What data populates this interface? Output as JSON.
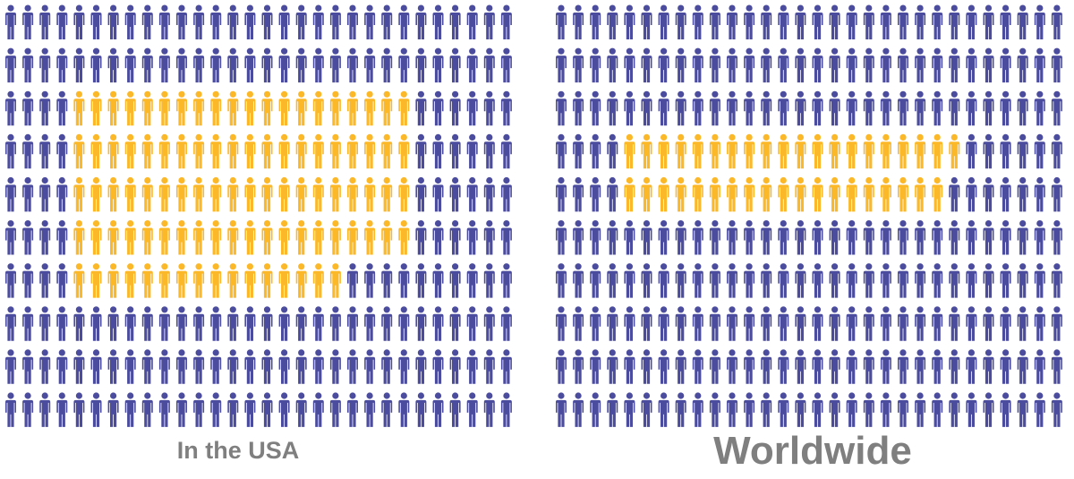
{
  "chart_data": [
    {
      "type": "pictogram",
      "title": "In the USA",
      "total": 300,
      "highlighted": 96,
      "columns": 30,
      "color": "#4b4c9e",
      "highlight_color": "#fbb829"
    },
    {
      "type": "pictogram",
      "title": "Worldwide",
      "total": 300,
      "highlighted": 39,
      "columns": 30,
      "color": "#4b4c9e",
      "highlight_color": "#fbb829"
    }
  ]
}
